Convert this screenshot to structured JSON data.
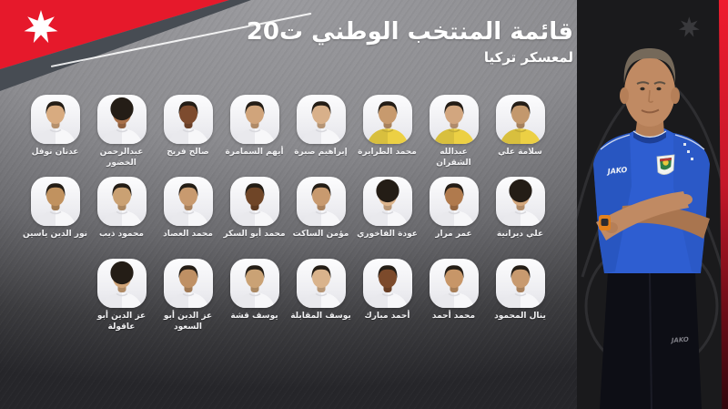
{
  "header": {
    "title": "قائمة المنتخب الوطني ت20",
    "subtitle": "لمعسكر تركيا"
  },
  "branding": {
    "banner_red": "#e6192b",
    "stripe_red": "#ee1c2e",
    "gk_yellow": "#ecd044",
    "star_color": "#ffffff",
    "panel_bg": "#1a1a1c",
    "name_text": "#f1f1f3",
    "star_icon": "seven-pointed-star"
  },
  "panel": {
    "kit_brand": "JAKO",
    "pants_brand": "JAKO"
  },
  "squad": {
    "rows": [
      [
        {
          "name": "سلامة علي",
          "jersey": "yellow",
          "skin": "#c3986d",
          "hair": "short"
        },
        {
          "name": "عبدالله الشقران",
          "jersey": "yellow",
          "skin": "#d2a67f",
          "hair": "short"
        },
        {
          "name": "محمد الطرايرة",
          "jersey": "yellow",
          "skin": "#c79a6e",
          "hair": "short"
        },
        {
          "name": "إبراهيم صبرة",
          "jersey": "white",
          "skin": "#d8b08a",
          "hair": "short"
        },
        {
          "name": "أيهم السمامرة",
          "jersey": "white",
          "skin": "#d0a47b",
          "hair": "short"
        },
        {
          "name": "صالح فريج",
          "jersey": "white",
          "skin": "#7d4b2e",
          "hair": "short"
        },
        {
          "name": "عبدالرحمن الخضور",
          "jersey": "white",
          "skin": "#a9714a",
          "hair": "curly"
        },
        {
          "name": "عدنان نوفل",
          "jersey": "white",
          "skin": "#d8ab80",
          "hair": "short"
        }
      ],
      [
        {
          "name": "علي ديرانية",
          "jersey": "white",
          "skin": "#d3a77d",
          "hair": "curly"
        },
        {
          "name": "عمر مرار",
          "jersey": "white",
          "skin": "#b07a4d",
          "hair": "short"
        },
        {
          "name": "عودة الفاخوري",
          "jersey": "white",
          "skin": "#dcb48c",
          "hair": "curly"
        },
        {
          "name": "مؤمن الساكت",
          "jersey": "white",
          "skin": "#c89a6f",
          "hair": "short"
        },
        {
          "name": "محمد أبو السكر",
          "jersey": "white",
          "skin": "#6f4527",
          "hair": "short"
        },
        {
          "name": "محمد العصاد",
          "jersey": "white",
          "skin": "#c89a6f",
          "hair": "short"
        },
        {
          "name": "محمود ذيب",
          "jersey": "white",
          "skin": "#caa173",
          "hair": "short"
        },
        {
          "name": "نور الدين ياسين",
          "jersey": "white",
          "skin": "#c1925f",
          "hair": "short"
        }
      ],
      [
        {
          "name": "ينال المحمود",
          "jersey": "white",
          "skin": "#c89a6f",
          "hair": "short"
        },
        {
          "name": "محمد أحمد",
          "jersey": "white",
          "skin": "#c79668",
          "hair": "short"
        },
        {
          "name": "أحمد مبارك",
          "jersey": "white",
          "skin": "#7c4a2b",
          "hair": "short"
        },
        {
          "name": "يوسف المقابلة",
          "jersey": "white",
          "skin": "#d9b38c",
          "hair": "short"
        },
        {
          "name": "يوسف قشة",
          "jersey": "white",
          "skin": "#caa275",
          "hair": "short"
        },
        {
          "name": "عز الدين أبو السعود",
          "jersey": "white",
          "skin": "#bf9064",
          "hair": "short"
        },
        {
          "name": "عز الدين أبو عاقولة",
          "jersey": "white",
          "skin": "#d0a478",
          "hair": "curly"
        }
      ]
    ]
  }
}
